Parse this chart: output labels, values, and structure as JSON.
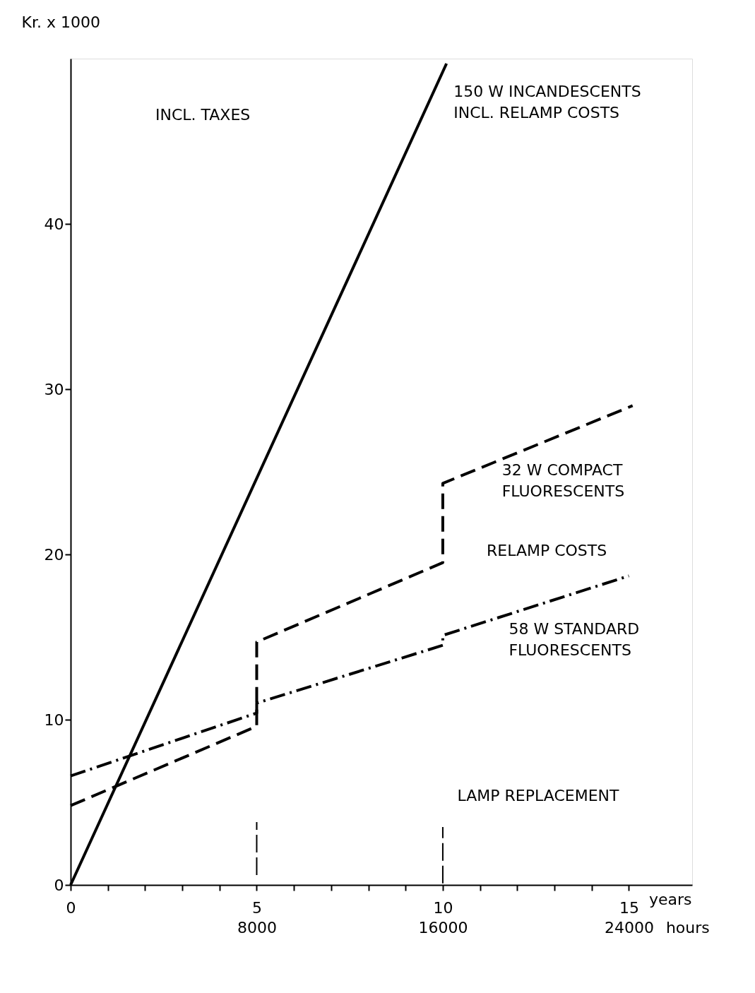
{
  "chart_data": {
    "type": "line",
    "ylabel": "Kr. x 1000",
    "xlabel": "years",
    "x2label": "hours",
    "xlim": [
      0,
      16.7
    ],
    "ylim": [
      0,
      50
    ],
    "x2lim": [
      0,
      26720
    ],
    "yticks": [
      0,
      10,
      20,
      30,
      40
    ],
    "xticks": [
      0,
      {
        "value": 1,
        "label": null
      },
      {
        "value": 2,
        "label": null
      },
      {
        "value": 3,
        "label": null
      },
      {
        "value": 4,
        "label": null
      },
      5,
      {
        "value": 6,
        "label": null
      },
      {
        "value": 7,
        "label": null
      },
      {
        "value": 8,
        "label": null
      },
      {
        "value": 9,
        "label": null
      },
      10,
      {
        "value": 11,
        "label": null
      },
      {
        "value": 12,
        "label": null
      },
      {
        "value": 13,
        "label": null
      },
      {
        "value": 14,
        "label": null
      },
      15
    ],
    "x2ticks": [
      8000,
      16000,
      24000
    ],
    "grid": false,
    "marker": "none",
    "series": [
      {
        "name": "150 W INCANDESCENTS\nINCL. RELAMP COSTS",
        "color": "#000000",
        "line_style": "solid",
        "x": [
          0,
          10.1
        ],
        "values": [
          0,
          49.7
        ]
      },
      {
        "name": "32 W COMPACT\nFLUORESCENTS",
        "color": "#000000",
        "line_style": "dashed",
        "x": [
          0,
          5,
          5,
          10,
          10,
          15.1
        ],
        "values": [
          4.8,
          9.6,
          14.7,
          19.5,
          24.3,
          29.0
        ]
      },
      {
        "name": "58 W STANDARD\nFLUORESCENTS",
        "color": "#000000",
        "line_style": "dashdot",
        "x": [
          0,
          5,
          5,
          10,
          10,
          15
        ],
        "values": [
          6.6,
          10.4,
          11.0,
          14.5,
          15.1,
          18.7
        ]
      },
      {
        "color": "#000000",
        "line_style": "dashed",
        "x": [
          5,
          5
        ],
        "values": [
          0.6,
          3.8
        ]
      },
      {
        "color": "#000000",
        "line_style": "dashed",
        "x": [
          10,
          10
        ],
        "values": [
          0.1,
          3.5
        ]
      }
    ],
    "annotations": [
      "INCL. TAXES",
      {
        "text": "RELAMP COSTS",
        "x": 10,
        "y": 20.2
      },
      "LAMP REPLACEMENT"
    ]
  }
}
